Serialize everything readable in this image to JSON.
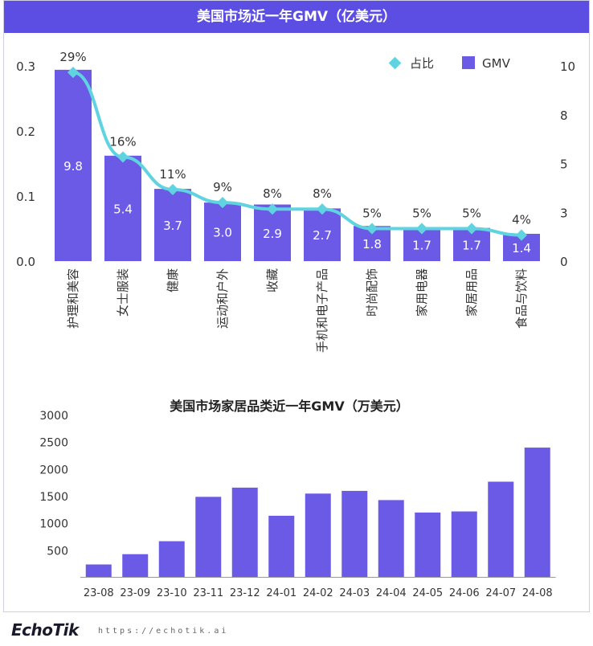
{
  "chart_data": [
    {
      "type": "bar",
      "title": "美国市场近一年GMV（亿美元）",
      "categories": [
        "护理和美容",
        "女士服装",
        "健康",
        "运动和户外",
        "收藏",
        "手机和电子产品",
        "时尚配饰",
        "家用电器",
        "家居用品",
        "食品与饮料"
      ],
      "series": [
        {
          "name": "GMV",
          "type": "bar",
          "axis": "right",
          "values": [
            9.8,
            5.4,
            3.7,
            3.0,
            2.9,
            2.7,
            1.8,
            1.7,
            1.7,
            1.4
          ]
        },
        {
          "name": "占比",
          "type": "line",
          "axis": "left",
          "values": [
            0.29,
            0.16,
            0.11,
            0.09,
            0.08,
            0.08,
            0.05,
            0.05,
            0.05,
            0.04
          ]
        }
      ],
      "bar_labels": [
        "9.8",
        "5.4",
        "3.7",
        "3.0",
        "2.9",
        "2.7",
        "1.8",
        "1.7",
        "1.7",
        "1.4"
      ],
      "line_labels": [
        "29%",
        "16%",
        "11%",
        "9%",
        "8%",
        "8%",
        "5%",
        "5%",
        "5%",
        "4%"
      ],
      "left_axis": {
        "ylim": [
          0,
          0.3
        ],
        "ticks": [
          "0.0",
          "0.1",
          "0.2",
          "0.3"
        ],
        "tick_values": [
          0,
          0.1,
          0.2,
          0.3
        ]
      },
      "right_axis": {
        "ylim": [
          0,
          10
        ],
        "ticks": [
          "0",
          "3",
          "5",
          "8",
          "10"
        ],
        "tick_values": [
          0,
          2.5,
          5,
          7.5,
          10
        ]
      },
      "legend": [
        {
          "name": "占比",
          "marker": "diamond"
        },
        {
          "name": "GMV",
          "marker": "square"
        }
      ],
      "legend_position": "top-right"
    },
    {
      "type": "bar",
      "title": "美国市场家居品类近一年GMV（万美元）",
      "categories": [
        "23-08",
        "23-09",
        "23-10",
        "23-11",
        "23-12",
        "24-01",
        "24-02",
        "24-03",
        "24-04",
        "24-05",
        "24-06",
        "24-07",
        "24-08"
      ],
      "values": [
        230,
        420,
        660,
        1480,
        1650,
        1130,
        1540,
        1590,
        1420,
        1190,
        1210,
        1760,
        2390
      ],
      "ylim": [
        0,
        3000
      ],
      "yticks": [
        "500",
        "1000",
        "1500",
        "2000",
        "2500",
        "3000"
      ],
      "ytick_values": [
        500,
        1000,
        1500,
        2000,
        2500,
        3000
      ]
    }
  ],
  "colors": {
    "bar": "#6a5ae6",
    "line": "#5fd3e0",
    "header": "#5c4ee3"
  },
  "footer": {
    "logo": "EchoTik",
    "url": "https://echotik.ai"
  }
}
